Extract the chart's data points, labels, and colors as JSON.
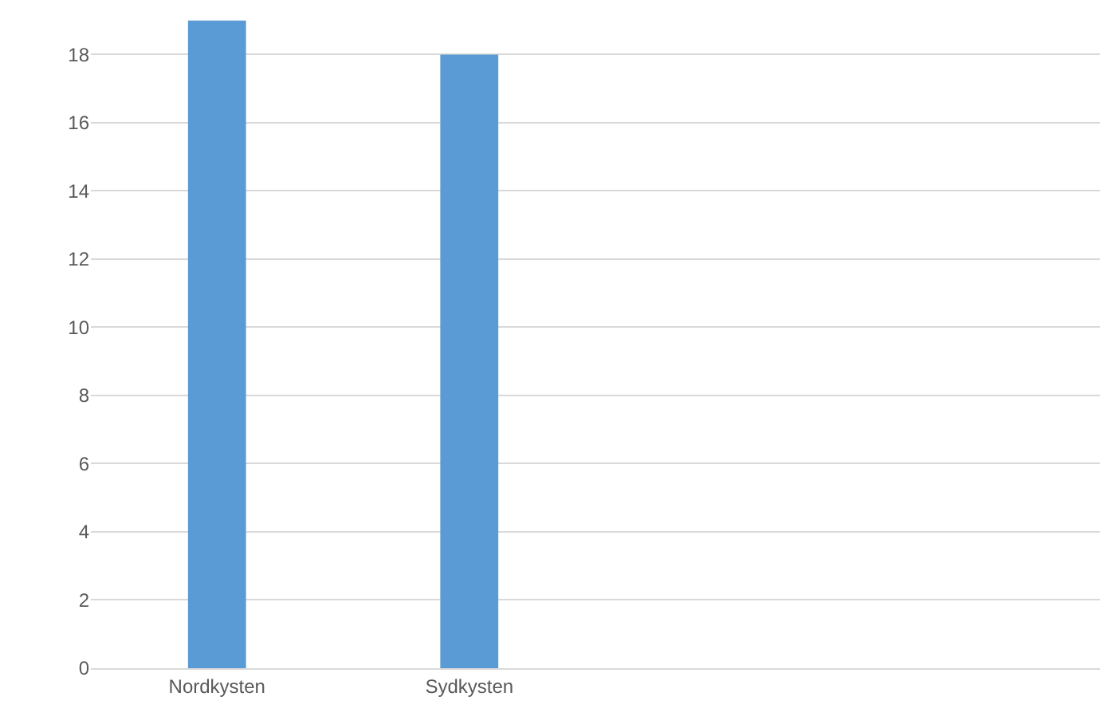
{
  "chart_data": {
    "type": "bar",
    "categories": [
      "Nordkysten",
      "Sydkysten",
      null,
      null
    ],
    "values": [
      19,
      18,
      null,
      null
    ],
    "color": "#5b9bd5",
    "ylim": [
      0,
      19.6
    ],
    "yticks": [
      0,
      2,
      4,
      6,
      8,
      10,
      12,
      14,
      16,
      18
    ],
    "grid": "y"
  }
}
